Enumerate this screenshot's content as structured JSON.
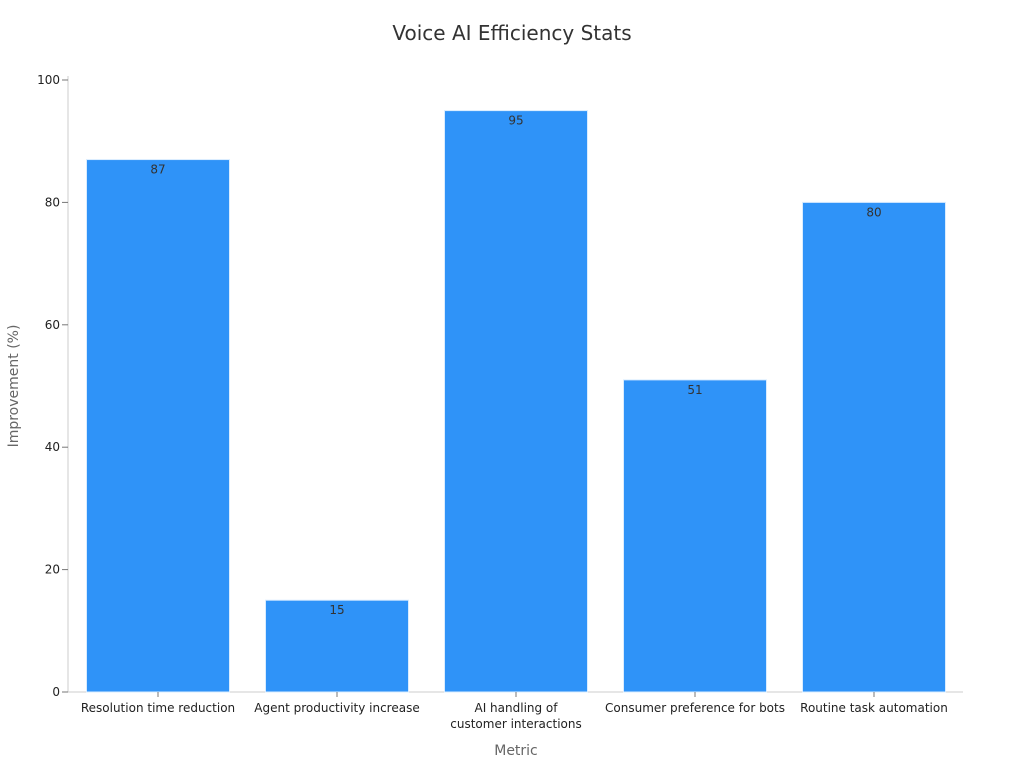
{
  "chart_data": {
    "type": "bar",
    "title": "Voice AI Efficiency Stats",
    "xlabel": "Metric",
    "ylabel": "Improvement (%)",
    "ylim": [
      0,
      100
    ],
    "yticks": [
      0,
      20,
      40,
      60,
      80,
      100
    ],
    "categories": [
      "Resolution time reduction",
      "Agent productivity increase",
      "AI handling of customer interactions",
      "Consumer preference for bots",
      "Routine task automation"
    ],
    "category_lines": [
      [
        "Resolution time reduction"
      ],
      [
        "Agent productivity increase"
      ],
      [
        "AI handling of",
        "customer interactions"
      ],
      [
        "Consumer preference for bots"
      ],
      [
        "Routine task automation"
      ]
    ],
    "values": [
      87,
      15,
      95,
      51,
      80
    ],
    "data_labels": [
      "87",
      "15",
      "95",
      "51",
      "80"
    ],
    "bar_color": "#2f93f8",
    "bar_edge_color": "#d9ecff",
    "grid": false,
    "legend": "none"
  }
}
